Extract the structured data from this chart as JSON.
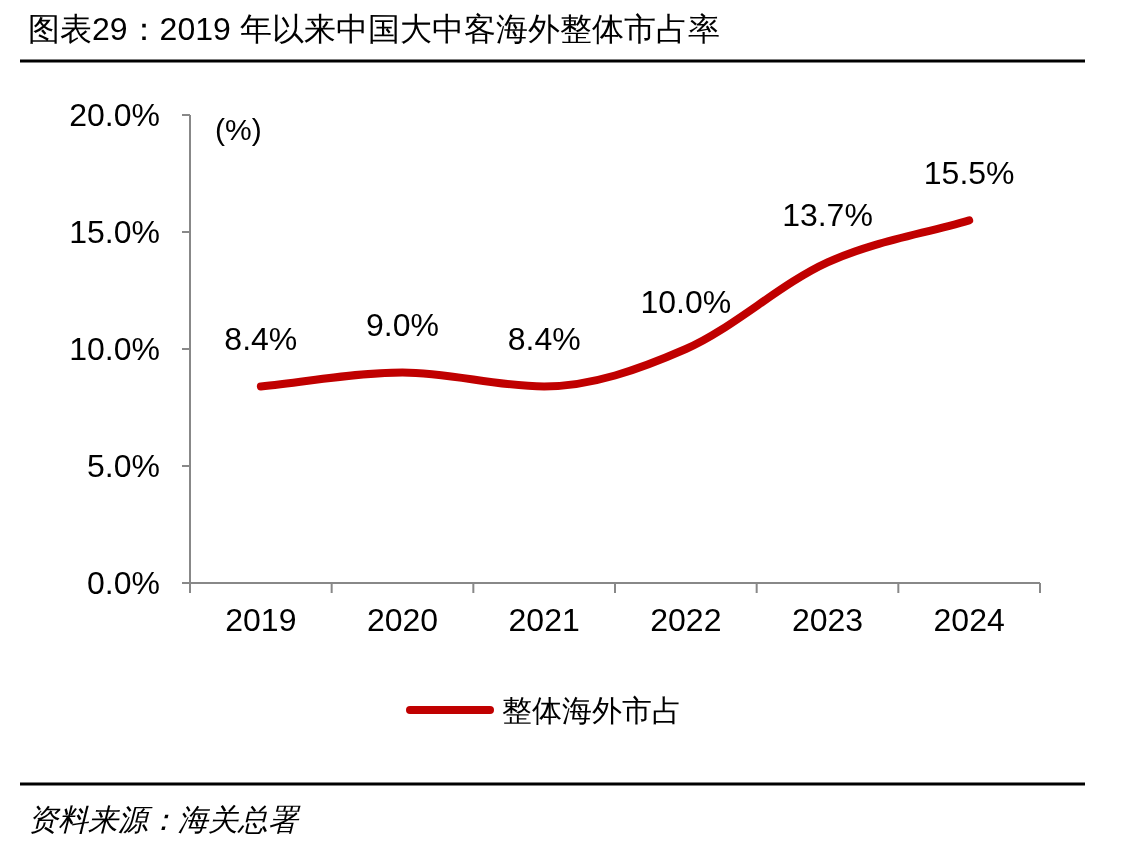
{
  "chart_data": {
    "type": "line",
    "title": "图表29：2019 年以来中国大中客海外整体市占率",
    "ylabel": "(%)",
    "categories": [
      "2019",
      "2020",
      "2021",
      "2022",
      "2023",
      "2024"
    ],
    "series": [
      {
        "name": "整体海外市占",
        "color": "#c00000",
        "values": [
          8.4,
          9.0,
          8.4,
          10.0,
          13.7,
          15.5
        ]
      }
    ],
    "value_labels": [
      "8.4%",
      "9.0%",
      "8.4%",
      "10.0%",
      "13.7%",
      "15.5%"
    ],
    "ylim": [
      0,
      20
    ],
    "yticks": [
      {
        "value": 0,
        "label": "0.0%"
      },
      {
        "value": 5,
        "label": "5.0%"
      },
      {
        "value": 10,
        "label": "10.0%"
      },
      {
        "value": 15,
        "label": "15.0%"
      },
      {
        "value": 20,
        "label": "20.0%"
      }
    ],
    "grid": false,
    "legend": "bottom",
    "marker": "none",
    "line_style": "solid",
    "annotations": [
      "资料来源：海关总署"
    ]
  }
}
